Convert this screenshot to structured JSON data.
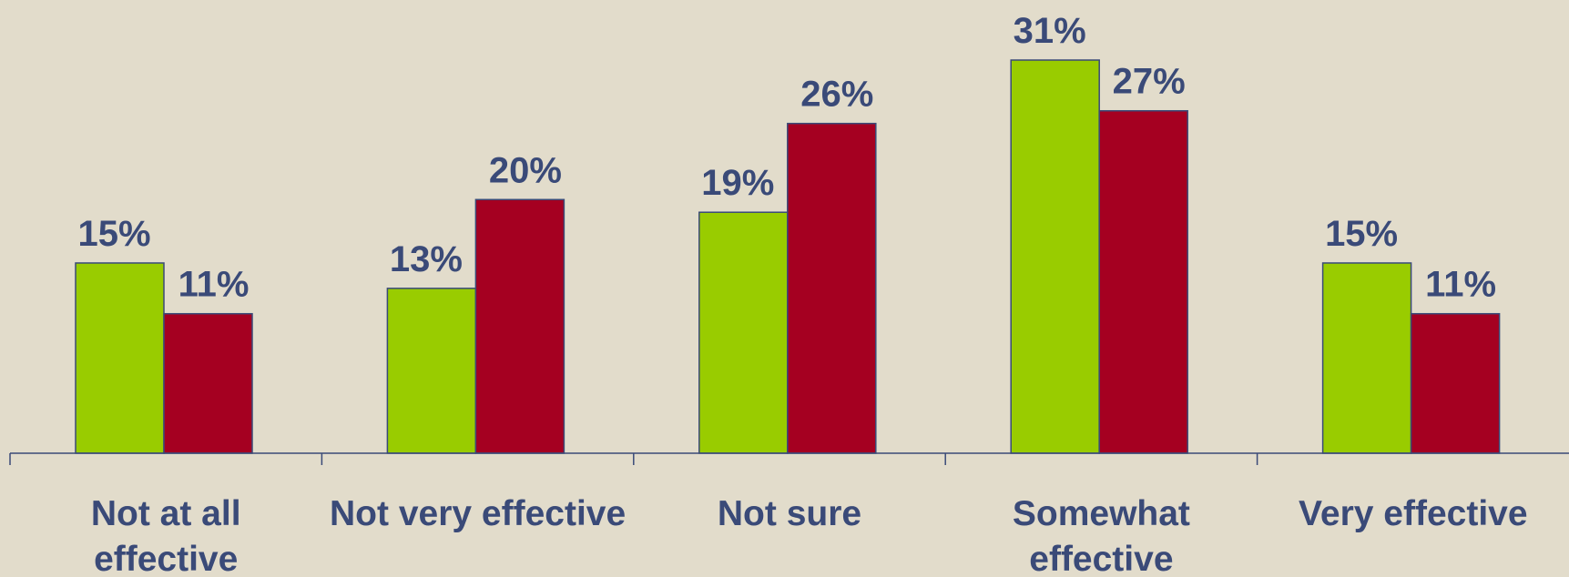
{
  "chart_data": {
    "type": "bar",
    "title": "",
    "xlabel": "",
    "ylabel": "",
    "categories": [
      [
        "Not at all",
        "effective"
      ],
      [
        "Not very effective"
      ],
      [
        "Not sure"
      ],
      [
        "Somewhat",
        "effective"
      ],
      [
        "Very effective"
      ]
    ],
    "series": [
      {
        "color": "#99cc00",
        "values": [
          15,
          13,
          19,
          31,
          15
        ],
        "labels": [
          "15%",
          "13%",
          "19%",
          "31%",
          "15%"
        ]
      },
      {
        "color": "#a50021",
        "values": [
          11,
          20,
          26,
          27,
          11
        ],
        "labels": [
          "11%",
          "20%",
          "26%",
          "27%",
          "11%"
        ]
      }
    ],
    "ylim": [
      0,
      31
    ],
    "grid": false,
    "legend": "none",
    "text_color": "#3a4a78"
  }
}
